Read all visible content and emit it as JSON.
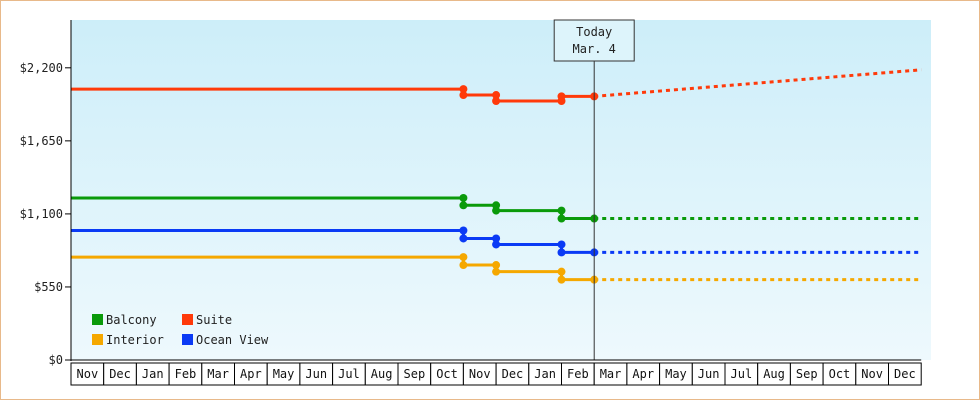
{
  "chart_data": {
    "type": "line",
    "title": "",
    "xlabel": "",
    "ylabel": "",
    "yticks": [
      {
        "value": 0,
        "label": "$0"
      },
      {
        "value": 550,
        "label": "$550"
      },
      {
        "value": 1100,
        "label": "$1,100"
      },
      {
        "value": 1650,
        "label": "$1,650"
      },
      {
        "value": 2200,
        "label": "$2,200"
      }
    ],
    "ylim": [
      0,
      2560
    ],
    "months": [
      "Nov",
      "Dec",
      "Jan",
      "Feb",
      "Mar",
      "Apr",
      "May",
      "Jun",
      "Jul",
      "Aug",
      "Sep",
      "Oct",
      "Nov",
      "Dec",
      "Jan",
      "Feb",
      "Mar",
      "Apr",
      "May",
      "Jun",
      "Jul",
      "Aug",
      "Sep",
      "Oct",
      "Nov",
      "Dec"
    ],
    "today": {
      "title": "Today",
      "date": "Mar. 4",
      "month_index": 16
    },
    "grid": false,
    "legend": "bottom-left",
    "background_gradient": [
      "#cdeef9",
      "#eef9fd"
    ],
    "series": [
      {
        "name": "Balcony",
        "color": "#0a9a0a",
        "points": [
          [
            0,
            1220
          ],
          [
            12,
            1220
          ],
          [
            12,
            1165
          ],
          [
            13,
            1165
          ],
          [
            13,
            1125
          ],
          [
            15,
            1125
          ],
          [
            15,
            1065
          ],
          [
            16,
            1065
          ]
        ],
        "markers": [
          12,
          13,
          15,
          16
        ],
        "forecast": [
          [
            16,
            1065
          ],
          [
            26,
            1065
          ]
        ]
      },
      {
        "name": "Suite",
        "color": "#ff3a0a",
        "points": [
          [
            0,
            2040
          ],
          [
            12,
            2040
          ],
          [
            12,
            1995
          ],
          [
            13,
            1995
          ],
          [
            13,
            1950
          ],
          [
            15,
            1950
          ],
          [
            15,
            1985
          ],
          [
            16,
            1985
          ]
        ],
        "markers": [
          12,
          13,
          15,
          16
        ],
        "forecast": [
          [
            16,
            1985
          ],
          [
            26,
            2185
          ]
        ]
      },
      {
        "name": "Interior",
        "color": "#f5a800",
        "points": [
          [
            0,
            775
          ],
          [
            12,
            775
          ],
          [
            12,
            715
          ],
          [
            13,
            715
          ],
          [
            13,
            665
          ],
          [
            15,
            665
          ],
          [
            15,
            605
          ],
          [
            16,
            605
          ]
        ],
        "markers": [
          12,
          13,
          15,
          16
        ],
        "forecast": [
          [
            16,
            605
          ],
          [
            26,
            605
          ]
        ]
      },
      {
        "name": "Ocean View",
        "color": "#0a3af5",
        "points": [
          [
            0,
            975
          ],
          [
            12,
            975
          ],
          [
            12,
            915
          ],
          [
            13,
            915
          ],
          [
            13,
            870
          ],
          [
            15,
            870
          ],
          [
            15,
            810
          ],
          [
            16,
            810
          ]
        ],
        "markers": [
          12,
          13,
          15,
          16
        ],
        "forecast": [
          [
            16,
            810
          ],
          [
            26,
            810
          ]
        ]
      }
    ],
    "legend_order": [
      "Balcony",
      "Suite",
      "Interior",
      "Ocean View"
    ]
  }
}
